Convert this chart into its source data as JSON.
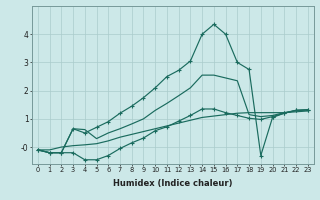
{
  "xlabel": "Humidex (Indice chaleur)",
  "ylabel": "",
  "bg_color": "#cce8e8",
  "grid_color": "#aacccc",
  "line_color": "#1a6b5e",
  "xlim": [
    -0.5,
    23.5
  ],
  "ylim": [
    -0.6,
    5.0
  ],
  "yticks": [
    0,
    1,
    2,
    3,
    4
  ],
  "ytick_labels": [
    "-0",
    "1",
    "2",
    "3",
    "4"
  ],
  "xticks": [
    0,
    1,
    2,
    3,
    4,
    5,
    6,
    7,
    8,
    9,
    10,
    11,
    12,
    13,
    14,
    15,
    16,
    17,
    18,
    19,
    20,
    21,
    22,
    23
  ],
  "line1_x": [
    0,
    1,
    2,
    3,
    4,
    5,
    6,
    7,
    8,
    9,
    10,
    11,
    12,
    13,
    14,
    15,
    16,
    17,
    18,
    19,
    20,
    21,
    22,
    23
  ],
  "line1_y": [
    -0.1,
    -0.2,
    -0.2,
    -0.2,
    -0.45,
    -0.45,
    -0.3,
    -0.05,
    0.15,
    0.32,
    0.58,
    0.72,
    0.92,
    1.12,
    1.35,
    1.35,
    1.22,
    1.12,
    1.02,
    0.98,
    1.08,
    1.2,
    1.3,
    1.32
  ],
  "line2_x": [
    0,
    1,
    2,
    3,
    4,
    5,
    6,
    7,
    8,
    9,
    10,
    11,
    12,
    13,
    14,
    15,
    16,
    17,
    18,
    19,
    20,
    21,
    22,
    23
  ],
  "line2_y": [
    -0.1,
    -0.2,
    -0.2,
    0.65,
    0.62,
    0.3,
    0.5,
    0.65,
    0.82,
    1.0,
    1.3,
    1.55,
    1.82,
    2.1,
    2.55,
    2.55,
    2.45,
    2.35,
    1.15,
    1.08,
    1.12,
    1.22,
    1.3,
    1.32
  ],
  "line3_x": [
    0,
    1,
    2,
    3,
    4,
    5,
    6,
    7,
    8,
    9,
    10,
    11,
    12,
    13,
    14,
    15,
    16,
    17,
    18,
    19,
    20,
    21,
    22,
    23
  ],
  "line3_y": [
    -0.1,
    -0.2,
    -0.2,
    0.65,
    0.5,
    0.7,
    0.9,
    1.2,
    1.45,
    1.75,
    2.1,
    2.5,
    2.72,
    3.05,
    4.0,
    4.35,
    4.0,
    3.0,
    2.75,
    -0.3,
    1.05,
    1.2,
    1.3,
    1.32
  ],
  "line4_x": [
    0,
    1,
    2,
    3,
    4,
    5,
    6,
    7,
    8,
    9,
    10,
    11,
    12,
    13,
    14,
    15,
    16,
    17,
    18,
    19,
    20,
    21,
    22,
    23
  ],
  "line4_y": [
    -0.1,
    -0.1,
    0.0,
    0.05,
    0.08,
    0.12,
    0.22,
    0.35,
    0.45,
    0.55,
    0.65,
    0.75,
    0.85,
    0.95,
    1.05,
    1.1,
    1.15,
    1.2,
    1.22,
    1.22,
    1.22,
    1.22,
    1.25,
    1.28
  ]
}
